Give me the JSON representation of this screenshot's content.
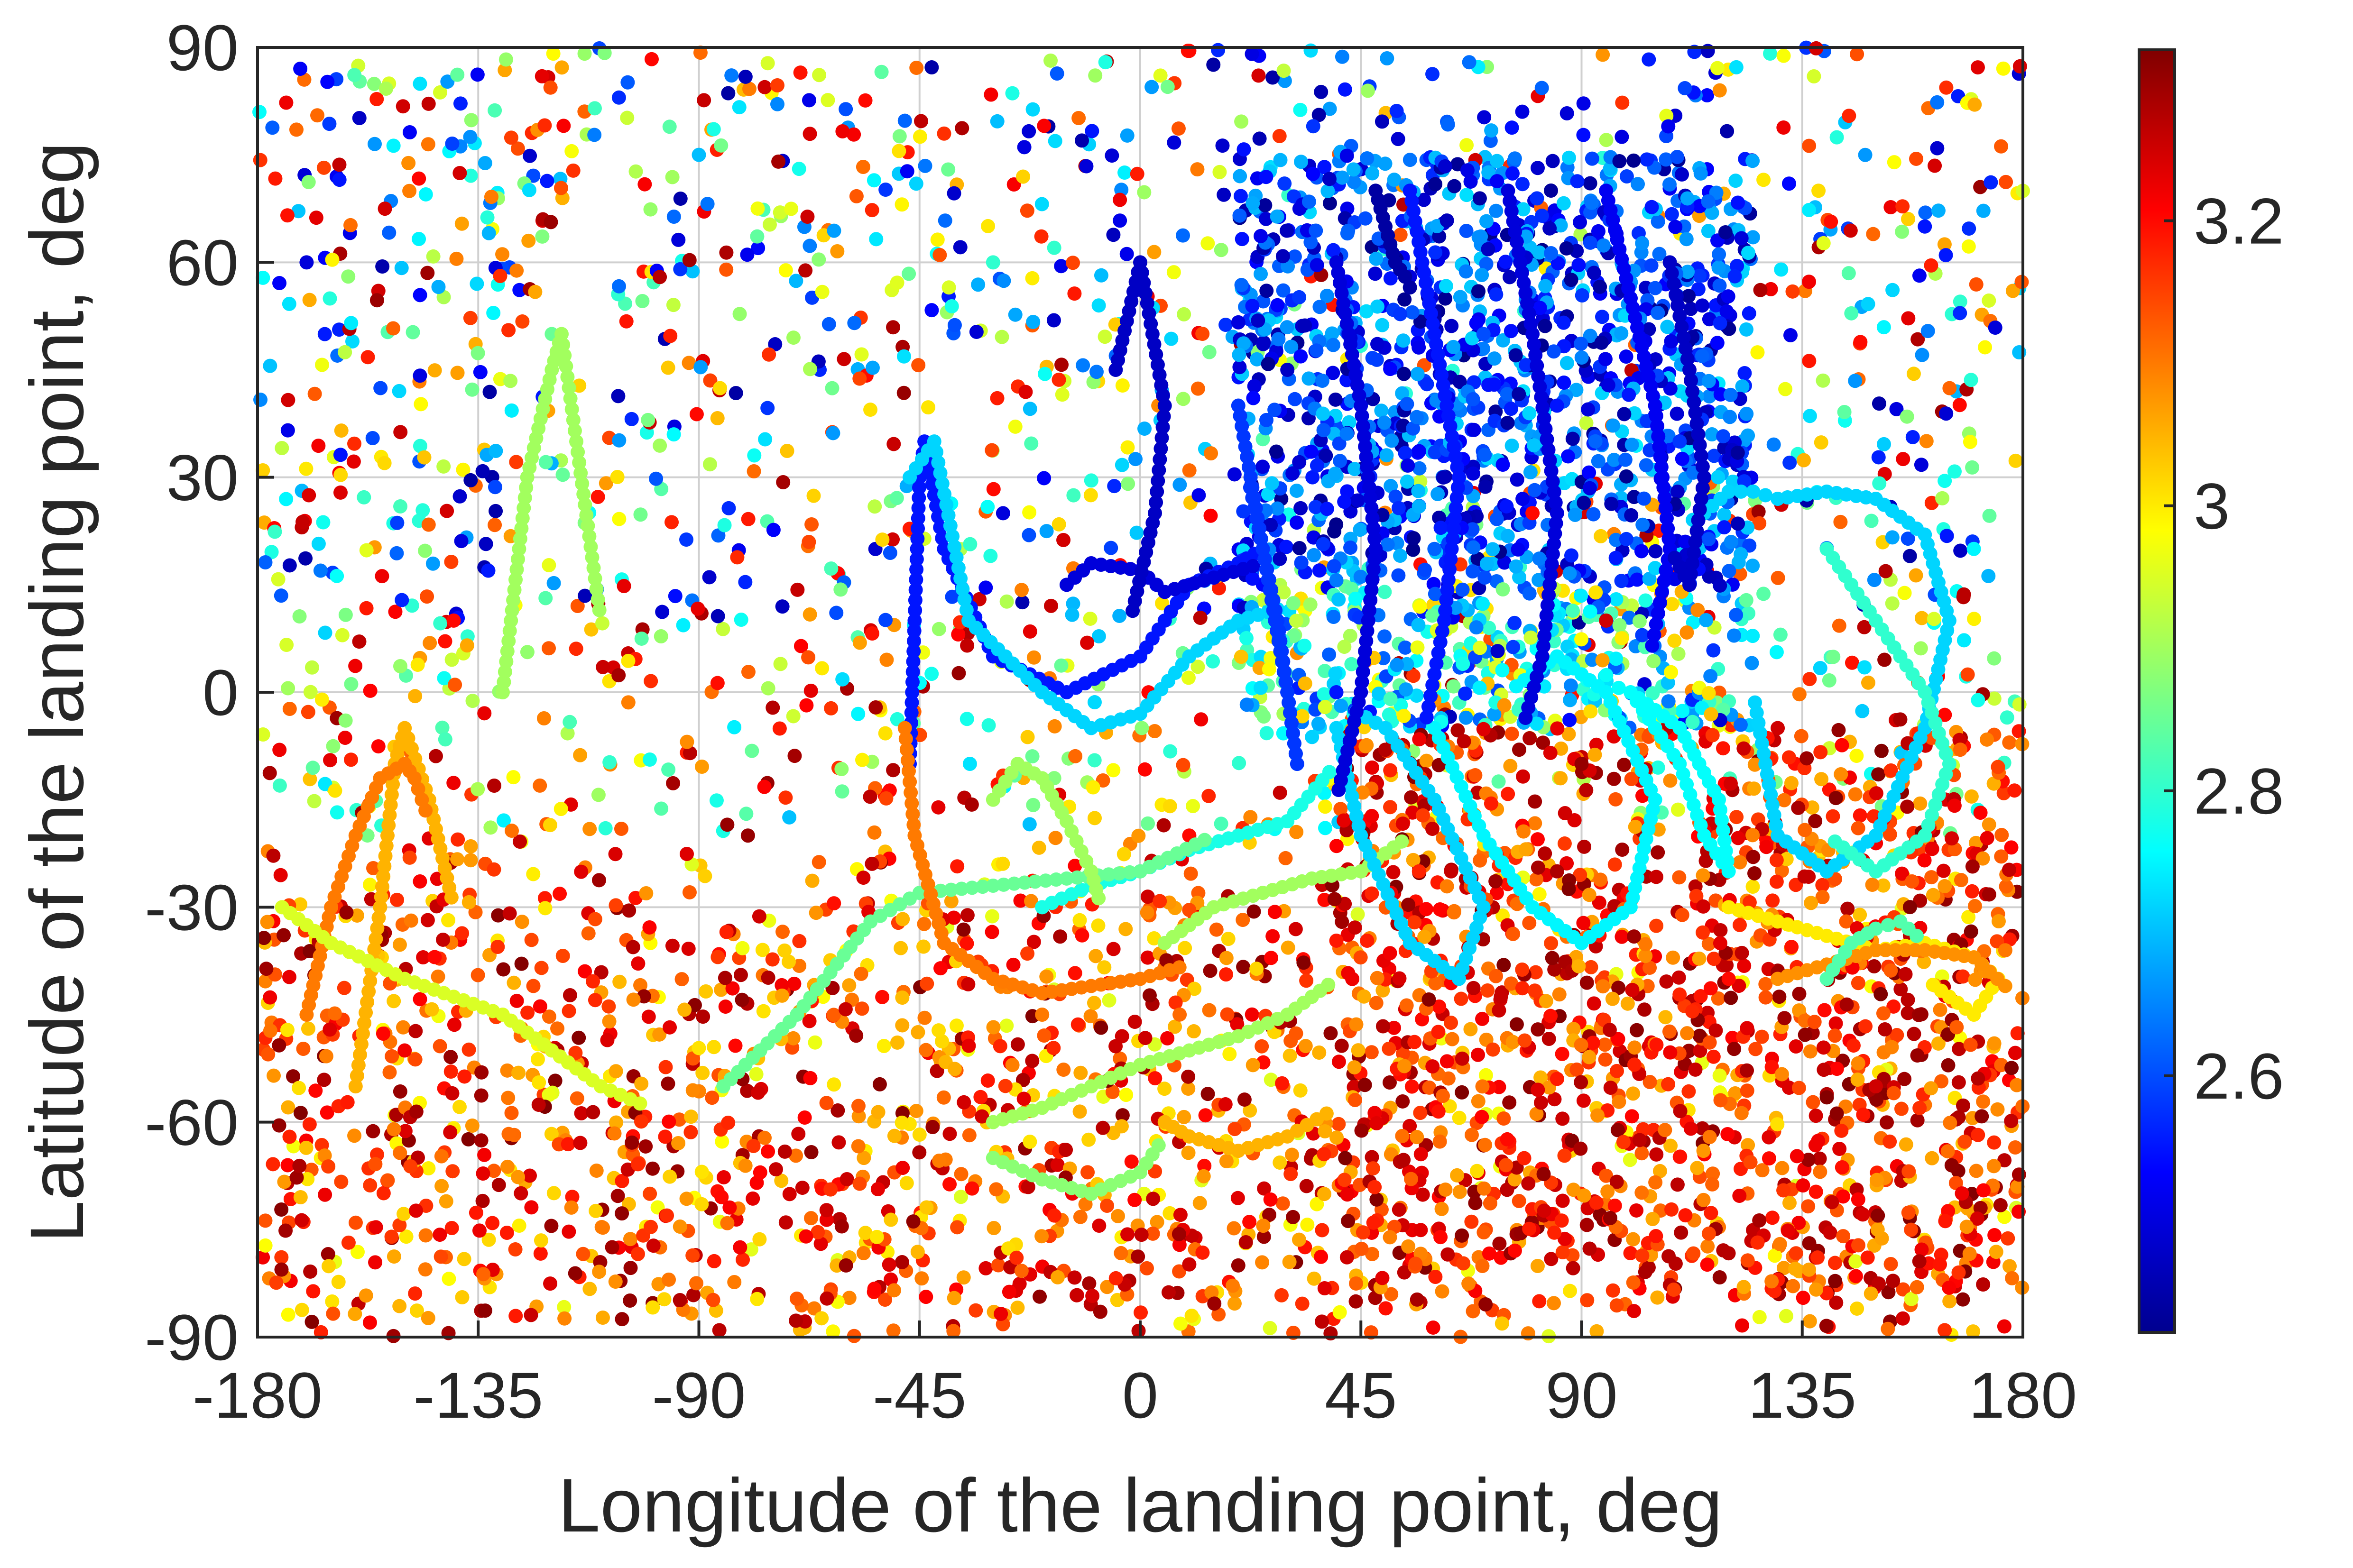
{
  "chart_data": {
    "type": "scatter",
    "title": "",
    "xlabel": "Longitude of the landing point, deg",
    "ylabel": "Latitude of the landing point, deg",
    "xlim": [
      -180,
      180
    ],
    "ylim": [
      -90,
      90
    ],
    "xticks": [
      -180,
      -135,
      -90,
      -45,
      0,
      45,
      90,
      135,
      180
    ],
    "yticks": [
      -90,
      -60,
      -30,
      0,
      30,
      60,
      90
    ],
    "xtick_labels": [
      "-180",
      "-135",
      "-90",
      "-45",
      "0",
      "45",
      "90",
      "135",
      "180"
    ],
    "ytick_labels": [
      "-90",
      "-60",
      "-30",
      "0",
      "30",
      "60",
      "90"
    ],
    "grid": true,
    "colormap": "jet",
    "colorbar": {
      "position": "right",
      "range": [
        2.42,
        3.32
      ],
      "ticks": [
        2.6,
        2.8,
        3.0,
        3.2
      ],
      "tick_labels": [
        "2.6",
        "2.8",
        "3",
        "3.2"
      ]
    },
    "color_variable_note": "",
    "points": [
      {
        "x": 50,
        "y": 65,
        "c": 2.45
      },
      {
        "x": 55,
        "y": 58,
        "c": 2.5
      },
      {
        "x": 30,
        "y": 45,
        "c": 2.48
      },
      {
        "x": 70,
        "y": 50,
        "c": 2.6
      },
      {
        "x": 85,
        "y": 40,
        "c": 2.55
      },
      {
        "x": 100,
        "y": 55,
        "c": 2.5
      },
      {
        "x": 110,
        "y": 35,
        "c": 2.58
      },
      {
        "x": 60,
        "y": 20,
        "c": 2.62
      },
      {
        "x": 80,
        "y": 25,
        "c": 3.2
      },
      {
        "x": 95,
        "y": 10,
        "c": 3.25
      },
      {
        "x": 90,
        "y": -10,
        "c": 3.3
      },
      {
        "x": 85,
        "y": -25,
        "c": 3.28
      },
      {
        "x": 120,
        "y": -40,
        "c": 3.2
      },
      {
        "x": 150,
        "y": -55,
        "c": 3.25
      },
      {
        "x": -150,
        "y": -50,
        "c": 3.22
      },
      {
        "x": -100,
        "y": -70,
        "c": 3.15
      },
      {
        "x": -60,
        "y": -80,
        "c": 3.3
      },
      {
        "x": 20,
        "y": -80,
        "c": 3.3
      },
      {
        "x": -170,
        "y": 60,
        "c": 2.5
      },
      {
        "x": -120,
        "y": 50,
        "c": 2.85
      },
      {
        "x": -90,
        "y": 75,
        "c": 2.7
      },
      {
        "x": 160,
        "y": 65,
        "c": 2.55
      },
      {
        "x": 170,
        "y": 20,
        "c": 2.75
      },
      {
        "x": -30,
        "y": 60,
        "c": 2.8
      },
      {
        "x": 10,
        "y": -20,
        "c": 3.2
      },
      {
        "x": -20,
        "y": -45,
        "c": 3.1
      },
      {
        "x": 130,
        "y": -5,
        "c": 3.25
      },
      {
        "x": -140,
        "y": 10,
        "c": 3.2
      },
      {
        "x": -80,
        "y": -20,
        "c": 3.3
      },
      {
        "x": 40,
        "y": 0,
        "c": 2.55
      }
    ],
    "trajectories": [
      {
        "c": 2.55,
        "x": [
          -47,
          -46,
          -45,
          -44,
          -40,
          -30,
          -15,
          0,
          10,
          20,
          25
        ],
        "y": [
          -10,
          10,
          30,
          35,
          20,
          5,
          0,
          5,
          15,
          18,
          20
        ]
      },
      {
        "c": 2.5,
        "x": [
          -15,
          -10,
          0,
          5,
          15,
          25
        ],
        "y": [
          15,
          18,
          17,
          14,
          16,
          18
        ]
      },
      {
        "c": 2.48,
        "x": [
          -5,
          0,
          5,
          3,
          -2
        ],
        "y": [
          45,
          60,
          40,
          25,
          10
        ]
      },
      {
        "c": 2.72,
        "x": [
          -47,
          -42,
          -35,
          -20,
          -10,
          0,
          10,
          20,
          30
        ],
        "y": [
          30,
          35,
          10,
          0,
          -5,
          -3,
          5,
          10,
          12
        ]
      },
      {
        "c": 2.78,
        "x": [
          -20,
          -10,
          0,
          10,
          20,
          30,
          40
        ],
        "y": [
          -30,
          -27,
          -25,
          -22,
          -20,
          -18,
          -10
        ]
      },
      {
        "c": 2.85,
        "x": [
          -85,
          -70,
          -55,
          -45,
          -30,
          -15,
          0,
          15
        ],
        "y": [
          -55,
          -45,
          -32,
          -28,
          -27,
          -26,
          -25,
          -20
        ]
      },
      {
        "c": 2.9,
        "x": [
          -30,
          -20,
          -10,
          0,
          10,
          20,
          30,
          40
        ],
        "y": [
          -60,
          -58,
          -55,
          -52,
          -50,
          -48,
          -45,
          -40
        ]
      },
      {
        "c": 3.1,
        "x": [
          -48,
          -46,
          -40,
          -30,
          -20,
          -10,
          0,
          10
        ],
        "y": [
          -5,
          -20,
          -35,
          -40,
          -42,
          -41,
          -40,
          -38
        ]
      },
      {
        "c": 2.9,
        "x": [
          -30,
          -25,
          -20,
          -15,
          -10,
          -8
        ],
        "y": [
          -15,
          -10,
          -12,
          -18,
          -25,
          -30
        ]
      },
      {
        "c": 3.05,
        "x": [
          -160,
          -155,
          -152,
          -150,
          -145,
          -140
        ],
        "y": [
          -55,
          -30,
          -10,
          -5,
          -15,
          -30
        ]
      },
      {
        "c": 3.1,
        "x": [
          -170,
          -165,
          -160,
          -155,
          -150,
          -148,
          -145
        ],
        "y": [
          -45,
          -30,
          -20,
          -12,
          -10,
          -12,
          -18
        ]
      },
      {
        "c": 2.9,
        "x": [
          -130,
          -125,
          -120,
          -118,
          -115,
          -110
        ],
        "y": [
          0,
          30,
          45,
          50,
          35,
          10
        ]
      },
      {
        "c": 2.95,
        "x": [
          -175,
          -165,
          -150,
          -130,
          -120,
          -110,
          -100
        ],
        "y": [
          -30,
          -35,
          -40,
          -45,
          -50,
          -55,
          -58
        ]
      },
      {
        "c": 2.88,
        "x": [
          -30,
          -20,
          -10,
          0,
          5
        ],
        "y": [
          -65,
          -68,
          -70,
          -67,
          -62
        ]
      },
      {
        "c": 3.05,
        "x": [
          5,
          10,
          20,
          30,
          40
        ],
        "y": [
          -60,
          -62,
          -64,
          -62,
          -58
        ]
      },
      {
        "c": 2.9,
        "x": [
          5,
          15,
          25,
          35,
          45,
          55
        ],
        "y": [
          -35,
          -30,
          -28,
          -26,
          -25,
          -20
        ]
      },
      {
        "c": 2.72,
        "x": [
          40,
          45,
          55,
          65,
          70,
          60,
          50,
          42
        ],
        "y": [
          -5,
          -20,
          -35,
          -40,
          -30,
          -15,
          -5,
          -2
        ]
      },
      {
        "c": 2.75,
        "x": [
          60,
          70,
          80,
          90,
          100,
          105,
          95,
          85,
          75
        ],
        "y": [
          -5,
          -20,
          -30,
          -35,
          -30,
          -15,
          0,
          5,
          0
        ]
      },
      {
        "c": 2.76,
        "x": [
          100,
          110,
          115,
          120,
          118,
          110,
          100
        ],
        "y": [
          0,
          -10,
          -20,
          -25,
          -15,
          -5,
          0
        ]
      },
      {
        "c": 2.72,
        "x": [
          115,
          120,
          125,
          130,
          140,
          150,
          160,
          165,
          160,
          150,
          140,
          130,
          125
        ],
        "y": [
          25,
          28,
          28,
          27,
          28,
          27,
          22,
          10,
          -5,
          -20,
          -25,
          -20,
          0
        ]
      },
      {
        "c": 2.8,
        "x": [
          140,
          145,
          150,
          155,
          160,
          165,
          160,
          150,
          140
        ],
        "y": [
          20,
          15,
          10,
          5,
          0,
          -10,
          -20,
          -25,
          -20
        ]
      },
      {
        "c": 3.0,
        "x": [
          120,
          130,
          140,
          150,
          160,
          170,
          175,
          170,
          160
        ],
        "y": [
          -30,
          -32,
          -34,
          -36,
          -35,
          -37,
          -40,
          -45,
          -40
        ]
      },
      {
        "c": 3.08,
        "x": [
          130,
          140,
          150,
          160,
          170,
          178
        ],
        "y": [
          -40,
          -38,
          -36,
          -36,
          -37,
          -42
        ]
      },
      {
        "c": 2.83,
        "x": [
          140,
          145,
          150,
          155,
          160
        ],
        "y": [
          -40,
          -35,
          -33,
          -32,
          -35
        ]
      },
      {
        "c": 2.58,
        "x": [
          20,
          25,
          30,
          32,
          28,
          22
        ],
        "y": [
          40,
          20,
          0,
          -10,
          10,
          30
        ]
      },
      {
        "c": 2.45,
        "x": [
          48,
          50,
          52,
          54,
          56
        ],
        "y": [
          70,
          65,
          60,
          58,
          55
        ]
      },
      {
        "c": 2.5,
        "x": [
          40,
          45,
          48,
          45,
          40
        ],
        "y": [
          60,
          40,
          20,
          0,
          -15
        ]
      },
      {
        "c": 2.55,
        "x": [
          55,
          60,
          65,
          62,
          58
        ],
        "y": [
          70,
          50,
          30,
          10,
          -5
        ]
      },
      {
        "c": 2.5,
        "x": [
          75,
          80,
          85,
          82,
          78
        ],
        "y": [
          70,
          50,
          25,
          5,
          -5
        ]
      },
      {
        "c": 2.52,
        "x": [
          95,
          100,
          105,
          108,
          104
        ],
        "y": [
          70,
          55,
          40,
          20,
          5
        ]
      },
      {
        "c": 2.48,
        "x": [
          108,
          112,
          115,
          112,
          108
        ],
        "y": [
          60,
          45,
          30,
          15,
          20
        ]
      }
    ]
  }
}
